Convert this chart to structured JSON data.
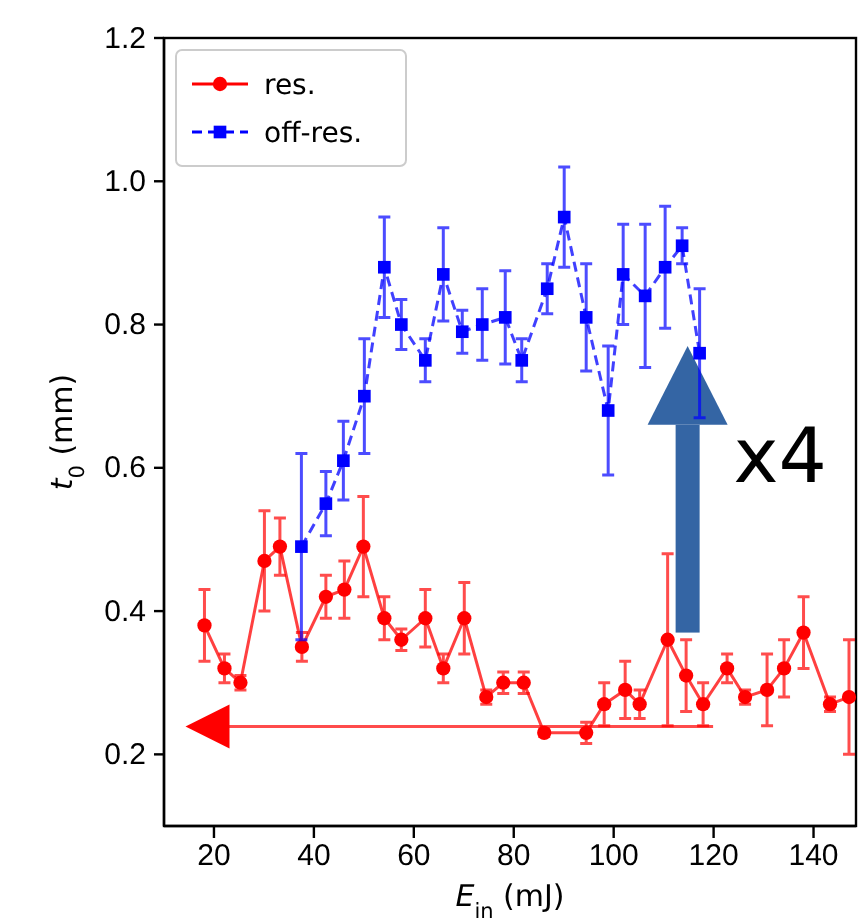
{
  "chart_data": {
    "type": "line",
    "xlabel": "E$_{in}$ (mJ)",
    "ylabel": "t$_{0}$ (mm)",
    "xlim": [
      10,
      148.5
    ],
    "ylim": [
      0.1,
      1.2
    ],
    "xticks": [
      20,
      40,
      60,
      80,
      100,
      120,
      140
    ],
    "yticks": [
      {
        "value": 0.2,
        "label": "0.2"
      },
      {
        "value": 0.4,
        "label": "0.4"
      },
      {
        "value": 0.6,
        "label": "0.6"
      },
      {
        "value": 0.8,
        "label": "0.8"
      },
      {
        "value": 1,
        "label": "1.0"
      },
      {
        "value": 1.2,
        "label": "1.2"
      }
    ],
    "grid": false,
    "legend": "top left",
    "annotations": [
      "x4"
    ],
    "series": [
      {
        "name": "res.",
        "color": "#ff0000",
        "marker": "circle",
        "line_style": "solid",
        "x": [
          18.1,
          22.1,
          25.3,
          30.1,
          33.2,
          37.6,
          42.4,
          46.1,
          49.9,
          54.1,
          57.5,
          62.3,
          65.9,
          70.1,
          74.5,
          77.9,
          82,
          86.1,
          94.5,
          98.1,
          102.3,
          105.2,
          110.8,
          114.5,
          117.9,
          122.7,
          126.3,
          130.7,
          134.1,
          138,
          143.3,
          147.1
        ],
        "values": [
          0.38,
          0.32,
          0.3,
          0.47,
          0.49,
          0.35,
          0.42,
          0.43,
          0.49,
          0.39,
          0.36,
          0.39,
          0.32,
          0.39,
          0.28,
          0.3,
          0.3,
          0.23,
          0.23,
          0.27,
          0.29,
          0.27,
          0.36,
          0.31,
          0.27,
          0.32,
          0.28,
          0.29,
          0.32,
          0.37,
          0.27,
          0.28
        ],
        "errors": [
          0.05,
          0.02,
          0.01,
          0.07,
          0.04,
          0.02,
          0.03,
          0.04,
          0.07,
          0.03,
          0.015,
          0.04,
          0.02,
          0.05,
          0.01,
          0.015,
          0.015,
          0.005,
          0.015,
          0.03,
          0.04,
          0.02,
          0.12,
          0.05,
          0.03,
          0.02,
          0.01,
          0.05,
          0.04,
          0.05,
          0.01,
          0.08
        ]
      },
      {
        "name": "off-res.",
        "color": "#0000ff",
        "marker": "square",
        "line_style": "dashed",
        "x": [
          37.5,
          42.4,
          45.9,
          50.1,
          54.1,
          57.5,
          62.3,
          65.9,
          69.7,
          73.7,
          78.3,
          81.6,
          86.7,
          90.1,
          94.5,
          98.9,
          101.9,
          106.3,
          110.3,
          113.7,
          117.2
        ],
        "values": [
          0.49,
          0.55,
          0.61,
          0.7,
          0.88,
          0.8,
          0.75,
          0.87,
          0.79,
          0.8,
          0.81,
          0.75,
          0.85,
          0.95,
          0.81,
          0.68,
          0.87,
          0.84,
          0.88,
          0.91,
          0.76
        ],
        "errors": [
          0.13,
          0.045,
          0.055,
          0.08,
          0.07,
          0.035,
          0.03,
          0.065,
          0.03,
          0.05,
          0.065,
          0.03,
          0.035,
          0.07,
          0.075,
          0.09,
          0.07,
          0.1,
          0.085,
          0.025,
          0.09
        ]
      }
    ]
  }
}
